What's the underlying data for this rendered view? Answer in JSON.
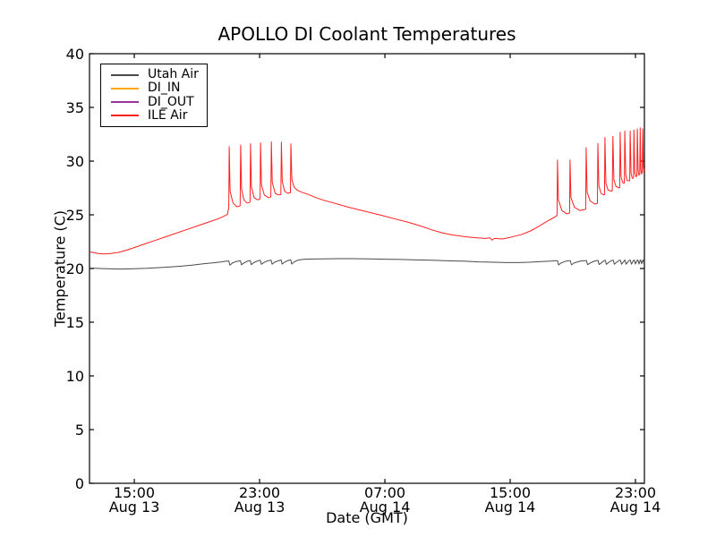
{
  "chart_data": {
    "type": "line",
    "title": "APOLLO DI Coolant Temperatures",
    "xlabel": "Date (GMT)",
    "ylabel": "Temperature (C)",
    "background_color": "#ffffff",
    "axes_color": "#000000",
    "grid": false,
    "legend_position": "upper left",
    "ylim": [
      0,
      40
    ],
    "yticks": [
      0,
      5,
      10,
      15,
      20,
      25,
      30,
      35,
      40
    ],
    "x_unit": "hours since Aug 13 00:00 GMT",
    "xlim_hours": [
      12.14,
      47.57
    ],
    "xticks": [
      {
        "t": 15,
        "time": "15:00",
        "date": "Aug 13"
      },
      {
        "t": 23,
        "time": "23:00",
        "date": "Aug 13"
      },
      {
        "t": 31,
        "time": "07:00",
        "date": "Aug 14"
      },
      {
        "t": 39,
        "time": "15:00",
        "date": "Aug 14"
      },
      {
        "t": 47,
        "time": "23:00",
        "date": "Aug 14"
      }
    ],
    "series": [
      {
        "name": "Utah Air",
        "color": "#4a4a4a",
        "visible_in_plot": true,
        "points": [
          [
            12.14,
            20.05
          ],
          [
            12.8,
            20.0
          ],
          [
            13.5,
            19.97
          ],
          [
            14.2,
            19.95
          ],
          [
            15.0,
            19.98
          ],
          [
            15.8,
            20.02
          ],
          [
            16.6,
            20.08
          ],
          [
            17.3,
            20.15
          ],
          [
            18.0,
            20.22
          ],
          [
            18.7,
            20.32
          ],
          [
            19.4,
            20.43
          ],
          [
            20.0,
            20.52
          ],
          [
            20.5,
            20.6
          ],
          [
            20.9,
            20.68
          ],
          [
            21.04,
            20.7
          ],
          [
            21.1,
            20.32
          ],
          [
            21.25,
            20.5
          ],
          [
            21.5,
            20.65
          ],
          [
            21.74,
            20.72
          ],
          [
            21.78,
            20.72
          ],
          [
            21.84,
            20.34
          ],
          [
            22.0,
            20.52
          ],
          [
            22.2,
            20.67
          ],
          [
            22.4,
            20.74
          ],
          [
            22.41,
            20.74
          ],
          [
            22.47,
            20.36
          ],
          [
            22.62,
            20.54
          ],
          [
            22.85,
            20.69
          ],
          [
            23.02,
            20.76
          ],
          [
            23.05,
            20.76
          ],
          [
            23.11,
            20.38
          ],
          [
            23.27,
            20.56
          ],
          [
            23.5,
            20.71
          ],
          [
            23.71,
            20.77
          ],
          [
            23.74,
            20.77
          ],
          [
            23.8,
            20.4
          ],
          [
            23.96,
            20.58
          ],
          [
            24.2,
            20.72
          ],
          [
            24.34,
            20.78
          ],
          [
            24.38,
            20.78
          ],
          [
            24.44,
            20.41
          ],
          [
            24.6,
            20.59
          ],
          [
            24.82,
            20.74
          ],
          [
            24.96,
            20.8
          ],
          [
            24.99,
            20.8
          ],
          [
            25.05,
            20.42
          ],
          [
            25.2,
            20.6
          ],
          [
            25.45,
            20.78
          ],
          [
            25.8,
            20.85
          ],
          [
            26.4,
            20.88
          ],
          [
            27.0,
            20.9
          ],
          [
            28.0,
            20.92
          ],
          [
            29.0,
            20.92
          ],
          [
            30.0,
            20.9
          ],
          [
            31.0,
            20.87
          ],
          [
            32.0,
            20.84
          ],
          [
            33.0,
            20.8
          ],
          [
            34.0,
            20.77
          ],
          [
            35.0,
            20.72
          ],
          [
            36.0,
            20.68
          ],
          [
            37.0,
            20.62
          ],
          [
            38.0,
            20.58
          ],
          [
            38.8,
            20.55
          ],
          [
            39.5,
            20.55
          ],
          [
            40.2,
            20.58
          ],
          [
            41.0,
            20.65
          ],
          [
            41.7,
            20.7
          ],
          [
            41.97,
            20.73
          ],
          [
            42.02,
            20.73
          ],
          [
            42.09,
            20.33
          ],
          [
            42.25,
            20.52
          ],
          [
            42.55,
            20.68
          ],
          [
            42.8,
            20.73
          ],
          [
            42.84,
            20.73
          ],
          [
            42.91,
            20.34
          ],
          [
            43.1,
            20.53
          ],
          [
            43.5,
            20.7
          ],
          [
            43.84,
            20.74
          ],
          [
            43.87,
            20.74
          ],
          [
            43.94,
            20.36
          ],
          [
            44.15,
            20.55
          ],
          [
            44.45,
            20.72
          ],
          [
            44.58,
            20.75
          ],
          [
            44.61,
            20.75
          ],
          [
            44.68,
            20.37
          ],
          [
            44.85,
            20.56
          ],
          [
            45.0,
            20.73
          ],
          [
            45.04,
            20.76
          ],
          [
            45.07,
            20.76
          ],
          [
            45.14,
            20.38
          ],
          [
            45.3,
            20.58
          ],
          [
            45.48,
            20.74
          ],
          [
            45.55,
            20.77
          ],
          [
            45.58,
            20.77
          ],
          [
            45.65,
            20.39
          ],
          [
            45.8,
            20.59
          ],
          [
            45.95,
            20.75
          ],
          [
            46.01,
            20.77
          ],
          [
            46.04,
            20.77
          ],
          [
            46.11,
            20.4
          ],
          [
            46.22,
            20.6
          ],
          [
            46.3,
            20.76
          ],
          [
            46.33,
            20.78
          ],
          [
            46.4,
            20.4
          ],
          [
            46.5,
            20.6
          ],
          [
            46.62,
            20.77
          ],
          [
            46.67,
            20.78
          ],
          [
            46.74,
            20.41
          ],
          [
            46.82,
            20.61
          ],
          [
            46.89,
            20.77
          ],
          [
            46.93,
            20.78
          ],
          [
            47.0,
            20.42
          ],
          [
            47.06,
            20.62
          ],
          [
            47.12,
            20.78
          ],
          [
            47.16,
            20.78
          ],
          [
            47.22,
            20.42
          ],
          [
            47.27,
            20.62
          ],
          [
            47.3,
            20.78
          ],
          [
            47.33,
            20.78
          ],
          [
            47.39,
            20.43
          ],
          [
            47.44,
            20.63
          ],
          [
            47.46,
            20.78
          ],
          [
            47.49,
            20.78
          ],
          [
            47.54,
            20.45
          ],
          [
            47.57,
            20.65
          ]
        ]
      },
      {
        "name": "DI_IN",
        "color": "#ffa500",
        "visible_in_plot": false,
        "points": []
      },
      {
        "name": "DI_OUT",
        "color": "#993399",
        "visible_in_plot": false,
        "points": []
      },
      {
        "name": "ILE Air",
        "color": "#ff1f1f",
        "visible_in_plot": true,
        "points": [
          [
            12.14,
            21.55
          ],
          [
            12.7,
            21.4
          ],
          [
            13.1,
            21.35
          ],
          [
            13.5,
            21.4
          ],
          [
            14.0,
            21.5
          ],
          [
            14.6,
            21.75
          ],
          [
            15.1,
            22.0
          ],
          [
            15.7,
            22.3
          ],
          [
            16.3,
            22.6
          ],
          [
            17.0,
            22.95
          ],
          [
            17.7,
            23.3
          ],
          [
            18.4,
            23.65
          ],
          [
            19.1,
            24.0
          ],
          [
            19.7,
            24.3
          ],
          [
            20.3,
            24.6
          ],
          [
            20.7,
            24.85
          ],
          [
            20.95,
            25.05
          ],
          [
            21.0,
            25.5
          ],
          [
            21.03,
            25.55
          ],
          [
            21.06,
            31.35
          ],
          [
            21.12,
            27.2
          ],
          [
            21.3,
            26.1
          ],
          [
            21.55,
            25.75
          ],
          [
            21.72,
            25.8
          ],
          [
            21.76,
            25.85
          ],
          [
            21.79,
            31.5
          ],
          [
            21.85,
            27.4
          ],
          [
            22.0,
            26.4
          ],
          [
            22.2,
            26.1
          ],
          [
            22.34,
            26.15
          ],
          [
            22.39,
            26.2
          ],
          [
            22.42,
            31.6
          ],
          [
            22.48,
            27.6
          ],
          [
            22.65,
            26.6
          ],
          [
            22.85,
            26.4
          ],
          [
            23.0,
            26.45
          ],
          [
            23.03,
            26.5
          ],
          [
            23.06,
            31.7
          ],
          [
            23.12,
            27.8
          ],
          [
            23.3,
            26.85
          ],
          [
            23.55,
            26.6
          ],
          [
            23.7,
            26.65
          ],
          [
            23.72,
            26.7
          ],
          [
            23.75,
            31.8
          ],
          [
            23.81,
            28.0
          ],
          [
            24.0,
            27.0
          ],
          [
            24.2,
            26.85
          ],
          [
            24.33,
            26.9
          ],
          [
            24.36,
            26.9
          ],
          [
            24.39,
            31.75
          ],
          [
            24.45,
            28.1
          ],
          [
            24.6,
            27.2
          ],
          [
            24.8,
            27.0
          ],
          [
            24.95,
            27.05
          ],
          [
            24.97,
            27.05
          ],
          [
            25.0,
            31.6
          ],
          [
            25.06,
            28.3
          ],
          [
            25.2,
            27.6
          ],
          [
            25.4,
            27.3
          ],
          [
            25.7,
            27.1
          ],
          [
            26.1,
            26.9
          ],
          [
            26.6,
            26.6
          ],
          [
            27.1,
            26.35
          ],
          [
            27.6,
            26.15
          ],
          [
            28.1,
            25.95
          ],
          [
            28.7,
            25.7
          ],
          [
            29.4,
            25.45
          ],
          [
            30.1,
            25.2
          ],
          [
            30.8,
            24.95
          ],
          [
            31.7,
            24.6
          ],
          [
            32.5,
            24.3
          ],
          [
            33.3,
            23.95
          ],
          [
            34.0,
            23.6
          ],
          [
            34.7,
            23.3
          ],
          [
            35.4,
            23.1
          ],
          [
            36.2,
            22.95
          ],
          [
            36.9,
            22.85
          ],
          [
            37.4,
            22.8
          ],
          [
            37.7,
            22.85
          ],
          [
            37.85,
            22.65
          ],
          [
            38.0,
            22.8
          ],
          [
            38.5,
            22.75
          ],
          [
            39.0,
            22.9
          ],
          [
            39.7,
            23.15
          ],
          [
            40.3,
            23.5
          ],
          [
            40.8,
            23.9
          ],
          [
            41.3,
            24.35
          ],
          [
            41.8,
            24.75
          ],
          [
            41.95,
            24.9
          ],
          [
            41.99,
            24.95
          ],
          [
            42.02,
            30.1
          ],
          [
            42.08,
            26.4
          ],
          [
            42.3,
            25.4
          ],
          [
            42.6,
            25.1
          ],
          [
            42.76,
            25.15
          ],
          [
            42.79,
            25.2
          ],
          [
            42.82,
            30.1
          ],
          [
            42.88,
            26.6
          ],
          [
            43.1,
            25.7
          ],
          [
            43.45,
            25.4
          ],
          [
            43.8,
            25.5
          ],
          [
            43.82,
            25.55
          ],
          [
            43.85,
            31.25
          ],
          [
            43.91,
            27.1
          ],
          [
            44.1,
            26.3
          ],
          [
            44.4,
            26.0
          ],
          [
            44.55,
            26.05
          ],
          [
            44.57,
            26.1
          ],
          [
            44.6,
            31.65
          ],
          [
            44.66,
            27.7
          ],
          [
            44.8,
            27.0
          ],
          [
            44.98,
            26.85
          ],
          [
            45.02,
            26.9
          ],
          [
            45.05,
            32.2
          ],
          [
            45.11,
            27.95
          ],
          [
            45.25,
            27.3
          ],
          [
            45.48,
            27.2
          ],
          [
            45.52,
            27.25
          ],
          [
            45.56,
            32.3
          ],
          [
            45.62,
            28.25
          ],
          [
            45.75,
            27.65
          ],
          [
            45.95,
            27.5
          ],
          [
            45.99,
            27.55
          ],
          [
            46.02,
            32.7
          ],
          [
            46.08,
            28.55
          ],
          [
            46.18,
            28.0
          ],
          [
            46.27,
            27.95
          ],
          [
            46.29,
            27.95
          ],
          [
            46.32,
            32.8
          ],
          [
            46.38,
            28.75
          ],
          [
            46.46,
            28.2
          ],
          [
            46.61,
            28.15
          ],
          [
            46.63,
            28.2
          ],
          [
            46.66,
            32.8
          ],
          [
            46.72,
            28.9
          ],
          [
            46.79,
            28.4
          ],
          [
            46.85,
            28.4
          ],
          [
            46.87,
            28.45
          ],
          [
            46.9,
            32.9
          ],
          [
            46.95,
            29.0
          ],
          [
            47.02,
            28.55
          ],
          [
            47.07,
            28.6
          ],
          [
            47.09,
            28.6
          ],
          [
            47.12,
            33.0
          ],
          [
            47.17,
            29.1
          ],
          [
            47.22,
            28.7
          ],
          [
            47.25,
            28.75
          ],
          [
            47.27,
            28.75
          ],
          [
            47.3,
            33.1
          ],
          [
            47.34,
            29.2
          ],
          [
            47.39,
            28.8
          ],
          [
            47.41,
            28.85
          ],
          [
            47.43,
            28.9
          ],
          [
            47.46,
            33.0
          ],
          [
            47.5,
            29.6
          ],
          [
            47.53,
            29.0
          ],
          [
            47.57,
            29.3
          ]
        ]
      }
    ]
  }
}
